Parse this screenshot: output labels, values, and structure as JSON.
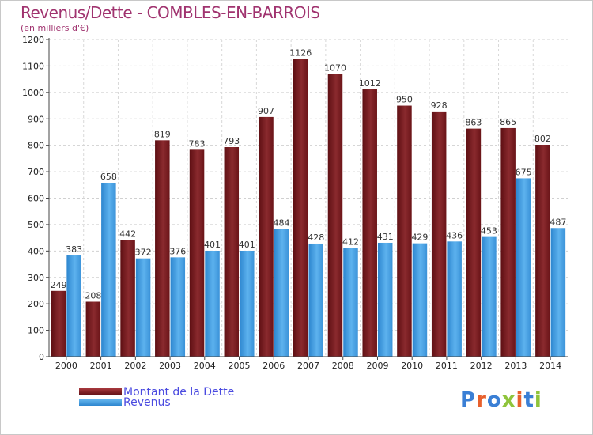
{
  "title": "Revenus/Dette - COMBLES-EN-BARROIS",
  "subtitle": "(en milliers d'€)",
  "logo": {
    "text": "Proxiti",
    "colors": [
      "#3a7fd5",
      "#e8602c",
      "#3a7fd5",
      "#8fc43b",
      "#e8602c",
      "#3a7fd5",
      "#8fc43b"
    ]
  },
  "colors": {
    "debt": "#7a1b1f",
    "debt_light": "#a8393e",
    "revenue": "#3c9ae0",
    "revenue_light": "#6bbcf2",
    "label": "#a0336f",
    "legend_text": "#4a4ae0"
  },
  "chart_data": {
    "type": "bar",
    "title": "Revenus/Dette - COMBLES-EN-BARROIS",
    "subtitle": "(en milliers d'€)",
    "categories": [
      "2000",
      "2001",
      "2002",
      "2003",
      "2004",
      "2005",
      "2006",
      "2007",
      "2008",
      "2009",
      "2010",
      "2011",
      "2012",
      "2013",
      "2014"
    ],
    "series": [
      {
        "name": "Montant de la Dette",
        "values": [
          249,
          208,
          442,
          819,
          783,
          793,
          907,
          1126,
          1070,
          1012,
          950,
          928,
          863,
          865,
          802
        ]
      },
      {
        "name": "Revenus",
        "values": [
          383,
          658,
          372,
          376,
          401,
          401,
          484,
          428,
          412,
          431,
          429,
          436,
          453,
          675,
          487
        ]
      }
    ],
    "ylim": [
      0,
      1200
    ],
    "yticks": [
      0,
      100,
      200,
      300,
      400,
      500,
      600,
      700,
      800,
      900,
      1000,
      1100,
      1200
    ],
    "grid": true,
    "legend": "bottom-left"
  }
}
